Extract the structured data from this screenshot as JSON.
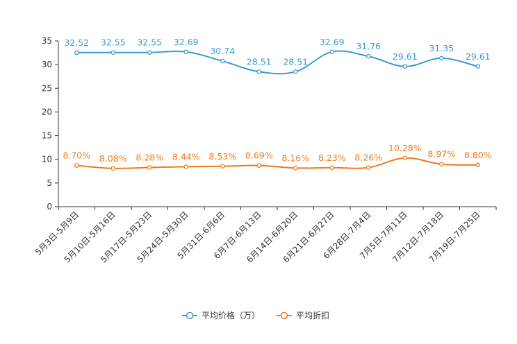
{
  "chart_data": {
    "type": "line",
    "categories": [
      "5月3日-5月9日",
      "5月10日-5月16日",
      "5月17日-5月23日",
      "5月24日-5月30日",
      "5月31日-6月6日",
      "6月7日-6月13日",
      "6月14日-6月20日",
      "6月21日-6月27日",
      "6月28日-7月4日",
      "7月5日-7月11日",
      "7月12日-7月18日",
      "7月19日-7月25日"
    ],
    "ylim": [
      0,
      35
    ],
    "yticks": [
      "0",
      "5",
      "10",
      "15",
      "20",
      "25",
      "30",
      "35"
    ],
    "series": [
      {
        "name": "平均价格（万）",
        "color": "#3a9bd1",
        "values": [
          32.52,
          32.55,
          32.55,
          32.69,
          30.74,
          28.51,
          28.51,
          32.69,
          31.76,
          29.61,
          31.35,
          29.61
        ],
        "labels": [
          "32.52",
          "32.55",
          "32.55",
          "32.69",
          "30.74",
          "28.51",
          "28.51",
          "32.69",
          "31.76",
          "29.61",
          "31.35",
          "29.61"
        ]
      },
      {
        "name": "平均折扣",
        "color": "#f07a1a",
        "values": [
          8.7,
          8.08,
          8.28,
          8.44,
          8.53,
          8.69,
          8.16,
          8.23,
          8.26,
          10.28,
          8.97,
          8.8
        ],
        "labels": [
          "8.70%",
          "8.08%",
          "8.28%",
          "8.44%",
          "8.53%",
          "8.69%",
          "8.16%",
          "8.23%",
          "8.26%",
          "10.28%",
          "8.97%",
          "8.80%"
        ]
      }
    ],
    "legend": "bottom-center"
  }
}
